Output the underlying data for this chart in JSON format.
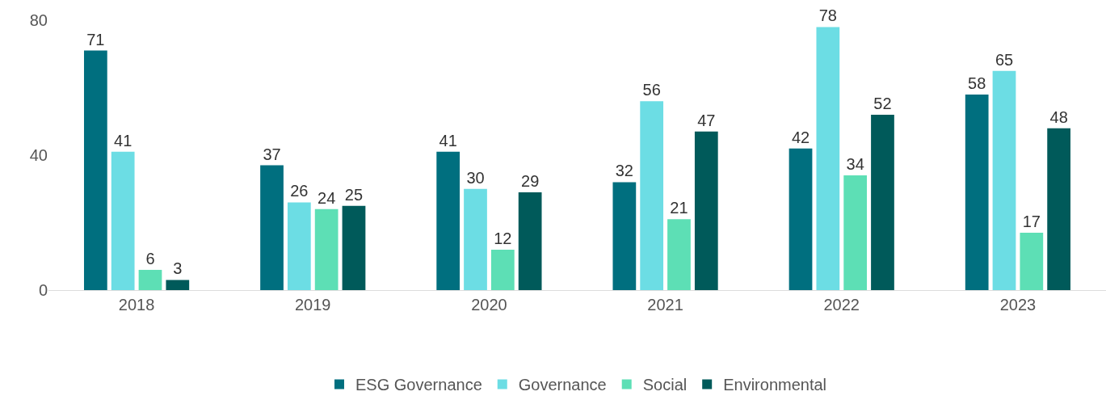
{
  "chart_data": {
    "type": "bar",
    "categories": [
      "2018",
      "2019",
      "2020",
      "2021",
      "2022",
      "2023"
    ],
    "series": [
      {
        "name": "ESG Governance",
        "color": "#006f7f",
        "values": [
          71,
          37,
          41,
          32,
          42,
          58
        ]
      },
      {
        "name": "Governance",
        "color": "#6cdde4",
        "values": [
          41,
          26,
          30,
          56,
          78,
          65
        ]
      },
      {
        "name": "Social",
        "color": "#5ddfb5",
        "values": [
          6,
          24,
          12,
          21,
          34,
          17
        ]
      },
      {
        "name": "Environmental",
        "color": "#005a5a",
        "values": [
          3,
          25,
          29,
          47,
          52,
          48
        ]
      }
    ],
    "ylim": [
      0,
      86
    ],
    "yticks": [
      0,
      40,
      80
    ],
    "grid": false,
    "legend": "bottom",
    "data_labels": true
  }
}
